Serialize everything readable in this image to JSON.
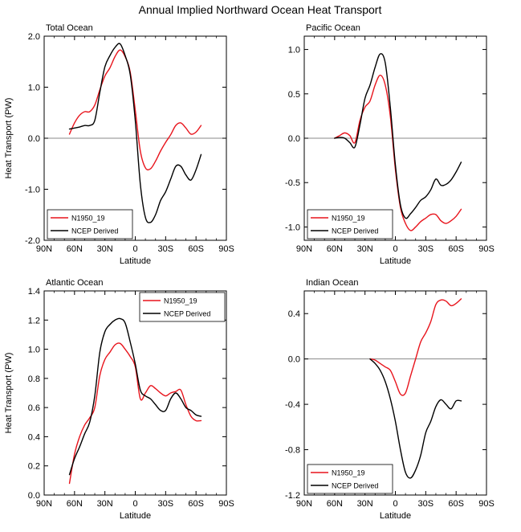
{
  "figure": {
    "title": "Annual Implied Northward Ocean Heat Transport"
  },
  "colors": {
    "model": "#e8141c",
    "obs": "#000000",
    "zero_line": "#888888"
  },
  "chart_data": [
    {
      "type": "line",
      "title": "Total Ocean",
      "xlabel": "Latitude",
      "ylabel": "Heat Transport (PW)",
      "xlim": [
        90,
        -90
      ],
      "ylim": [
        -2.0,
        2.0
      ],
      "xticks": [
        90,
        60,
        30,
        0,
        -30,
        -60,
        -90
      ],
      "xtick_labels": [
        "90N",
        "60N",
        "30N",
        "0",
        "30S",
        "60S",
        "90S"
      ],
      "yticks": [
        -2.0,
        -1.0,
        0.0,
        1.0,
        2.0
      ],
      "ytick_labels": [
        "-2.0",
        "-1.0",
        "0.0",
        "1.0",
        "2.0"
      ],
      "zero_line": true,
      "legend_position": "bottom-left",
      "series": [
        {
          "name": "N1950_19",
          "color": "#e8141c",
          "x": [
            65,
            60,
            55,
            50,
            45,
            40,
            35,
            30,
            25,
            20,
            15,
            10,
            5,
            0,
            -5,
            -10,
            -15,
            -20,
            -25,
            -30,
            -35,
            -40,
            -45,
            -50,
            -55,
            -60,
            -65
          ],
          "y": [
            0.08,
            0.3,
            0.45,
            0.52,
            0.52,
            0.65,
            0.95,
            1.22,
            1.38,
            1.6,
            1.73,
            1.6,
            1.3,
            0.55,
            -0.25,
            -0.58,
            -0.6,
            -0.45,
            -0.25,
            -0.08,
            0.07,
            0.25,
            0.3,
            0.2,
            0.08,
            0.12,
            0.25
          ]
        },
        {
          "name": "NCEP Derived",
          "color": "#000000",
          "x": [
            65,
            60,
            55,
            50,
            45,
            40,
            35,
            30,
            25,
            20,
            15,
            10,
            5,
            0,
            -5,
            -10,
            -15,
            -20,
            -25,
            -30,
            -35,
            -40,
            -45,
            -50,
            -55,
            -60,
            -65
          ],
          "y": [
            0.18,
            0.2,
            0.22,
            0.25,
            0.25,
            0.35,
            0.9,
            1.4,
            1.62,
            1.78,
            1.85,
            1.62,
            1.25,
            0.35,
            -0.9,
            -1.55,
            -1.65,
            -1.5,
            -1.22,
            -1.05,
            -0.8,
            -0.55,
            -0.55,
            -0.72,
            -0.82,
            -0.62,
            -0.32
          ]
        }
      ]
    },
    {
      "type": "line",
      "title": "Pacific Ocean",
      "xlabel": "Latitude",
      "ylabel": "",
      "xlim": [
        90,
        -90
      ],
      "ylim": [
        -1.15,
        1.15
      ],
      "xticks": [
        90,
        60,
        30,
        0,
        -30,
        -60,
        -90
      ],
      "xtick_labels": [
        "90N",
        "60N",
        "30N",
        "0",
        "30S",
        "60S",
        "90S"
      ],
      "yticks": [
        -1.0,
        -0.5,
        0.0,
        0.5,
        1.0
      ],
      "ytick_labels": [
        "-1.0",
        "-0.5",
        "0.0",
        "0.5",
        "1.0"
      ],
      "zero_line": true,
      "legend_position": "bottom-left",
      "series": [
        {
          "name": "N1950_19",
          "color": "#e8141c",
          "x": [
            60,
            55,
            50,
            45,
            40,
            35,
            30,
            25,
            20,
            15,
            10,
            5,
            0,
            -5,
            -10,
            -15,
            -20,
            -25,
            -30,
            -35,
            -40,
            -45,
            -50,
            -55,
            -60,
            -65
          ],
          "y": [
            0.0,
            0.03,
            0.06,
            0.03,
            -0.05,
            0.2,
            0.35,
            0.42,
            0.6,
            0.71,
            0.6,
            0.25,
            -0.35,
            -0.78,
            -0.96,
            -1.04,
            -1.0,
            -0.94,
            -0.9,
            -0.86,
            -0.86,
            -0.93,
            -0.96,
            -0.93,
            -0.88,
            -0.8
          ]
        },
        {
          "name": "NCEP Derived",
          "color": "#000000",
          "x": [
            60,
            55,
            50,
            45,
            40,
            35,
            30,
            25,
            20,
            15,
            10,
            5,
            0,
            -5,
            -10,
            -15,
            -20,
            -25,
            -30,
            -35,
            -40,
            -45,
            -50,
            -55,
            -60,
            -65
          ],
          "y": [
            0.0,
            0.01,
            0.0,
            -0.05,
            -0.1,
            0.15,
            0.45,
            0.6,
            0.8,
            0.95,
            0.85,
            0.35,
            -0.3,
            -0.75,
            -0.9,
            -0.85,
            -0.78,
            -0.7,
            -0.66,
            -0.58,
            -0.46,
            -0.53,
            -0.52,
            -0.47,
            -0.38,
            -0.27
          ]
        }
      ]
    },
    {
      "type": "line",
      "title": "Atlantic Ocean",
      "xlabel": "Latitude",
      "ylabel": "Heat Transport (PW)",
      "xlim": [
        90,
        -90
      ],
      "ylim": [
        0.0,
        1.4
      ],
      "xticks": [
        90,
        60,
        30,
        0,
        -30,
        -60,
        -90
      ],
      "xtick_labels": [
        "90N",
        "60N",
        "30N",
        "0",
        "30S",
        "60S",
        "90S"
      ],
      "yticks": [
        0.0,
        0.2,
        0.4,
        0.6,
        0.8,
        1.0,
        1.2,
        1.4
      ],
      "ytick_labels": [
        "0.0",
        "0.2",
        "0.4",
        "0.6",
        "0.8",
        "1.0",
        "1.2",
        "1.4"
      ],
      "zero_line": false,
      "legend_position": "top-right",
      "series": [
        {
          "name": "N1950_19",
          "color": "#e8141c",
          "x": [
            65,
            60,
            55,
            50,
            45,
            40,
            35,
            30,
            25,
            20,
            15,
            10,
            5,
            0,
            -5,
            -10,
            -15,
            -20,
            -25,
            -30,
            -35,
            -40,
            -45,
            -50,
            -55,
            -60,
            -65
          ],
          "y": [
            0.08,
            0.28,
            0.4,
            0.48,
            0.53,
            0.6,
            0.82,
            0.93,
            0.98,
            1.03,
            1.04,
            1.0,
            0.95,
            0.88,
            0.66,
            0.7,
            0.75,
            0.73,
            0.7,
            0.68,
            0.7,
            0.71,
            0.72,
            0.62,
            0.54,
            0.51,
            0.51
          ]
        },
        {
          "name": "NCEP Derived",
          "color": "#000000",
          "x": [
            65,
            60,
            55,
            50,
            45,
            40,
            35,
            30,
            25,
            20,
            15,
            10,
            5,
            0,
            -5,
            -10,
            -15,
            -20,
            -25,
            -30,
            -35,
            -40,
            -45,
            -50,
            -55,
            -60,
            -65
          ],
          "y": [
            0.14,
            0.25,
            0.33,
            0.42,
            0.5,
            0.68,
            0.98,
            1.12,
            1.17,
            1.2,
            1.21,
            1.18,
            1.05,
            0.9,
            0.72,
            0.68,
            0.66,
            0.62,
            0.58,
            0.58,
            0.66,
            0.7,
            0.66,
            0.6,
            0.58,
            0.55,
            0.54
          ]
        }
      ]
    },
    {
      "type": "line",
      "title": "Indian Ocean",
      "xlabel": "Latitude",
      "ylabel": "",
      "xlim": [
        90,
        -90
      ],
      "ylim": [
        -1.2,
        0.6
      ],
      "xticks": [
        90,
        60,
        30,
        0,
        -30,
        -60,
        -90
      ],
      "xtick_labels": [
        "90N",
        "60N",
        "30N",
        "0",
        "30S",
        "60S",
        "90S"
      ],
      "yticks": [
        -1.2,
        -0.8,
        -0.4,
        0.0,
        0.4
      ],
      "ytick_labels": [
        "-1.2",
        "-0.8",
        "-0.4",
        "0.0",
        "0.4"
      ],
      "zero_line": true,
      "legend_position": "bottom-left",
      "series": [
        {
          "name": "N1950_19",
          "color": "#e8141c",
          "x": [
            25,
            20,
            15,
            10,
            5,
            0,
            -5,
            -10,
            -15,
            -20,
            -25,
            -30,
            -35,
            -40,
            -45,
            -50,
            -55,
            -60,
            -65
          ],
          "y": [
            0.0,
            -0.01,
            -0.04,
            -0.07,
            -0.1,
            -0.2,
            -0.31,
            -0.3,
            -0.15,
            0.0,
            0.15,
            0.23,
            0.33,
            0.48,
            0.52,
            0.51,
            0.47,
            0.49,
            0.53
          ]
        },
        {
          "name": "NCEP Derived",
          "color": "#000000",
          "x": [
            25,
            20,
            15,
            10,
            5,
            0,
            -5,
            -10,
            -15,
            -20,
            -25,
            -30,
            -35,
            -40,
            -45,
            -50,
            -55,
            -60,
            -65
          ],
          "y": [
            0.0,
            -0.04,
            -0.1,
            -0.2,
            -0.35,
            -0.55,
            -0.8,
            -1.0,
            -1.05,
            -0.98,
            -0.85,
            -0.65,
            -0.55,
            -0.42,
            -0.36,
            -0.4,
            -0.44,
            -0.37,
            -0.37
          ]
        }
      ]
    }
  ]
}
